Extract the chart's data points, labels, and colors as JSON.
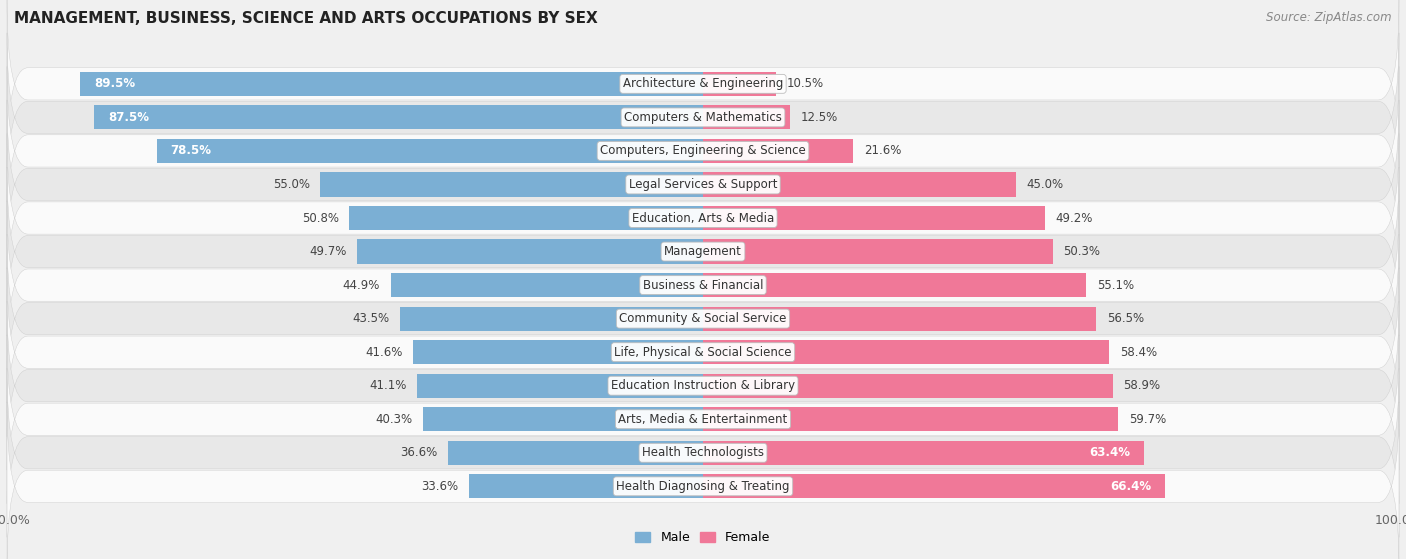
{
  "title": "MANAGEMENT, BUSINESS, SCIENCE AND ARTS OCCUPATIONS BY SEX",
  "source": "Source: ZipAtlas.com",
  "categories": [
    "Architecture & Engineering",
    "Computers & Mathematics",
    "Computers, Engineering & Science",
    "Legal Services & Support",
    "Education, Arts & Media",
    "Management",
    "Business & Financial",
    "Community & Social Service",
    "Life, Physical & Social Science",
    "Education Instruction & Library",
    "Arts, Media & Entertainment",
    "Health Technologists",
    "Health Diagnosing & Treating"
  ],
  "male_pct": [
    89.5,
    87.5,
    78.5,
    55.0,
    50.8,
    49.7,
    44.9,
    43.5,
    41.6,
    41.1,
    40.3,
    36.6,
    33.6
  ],
  "female_pct": [
    10.5,
    12.5,
    21.6,
    45.0,
    49.2,
    50.3,
    55.1,
    56.5,
    58.4,
    58.9,
    59.7,
    63.4,
    66.4
  ],
  "male_color": "#7bafd4",
  "female_color": "#f07898",
  "bg_color": "#f0f0f0",
  "row_bg_light": "#fafafa",
  "row_bg_dark": "#e8e8e8",
  "label_dark": "#444444",
  "label_white": "#ffffff",
  "title_color": "#222222",
  "source_color": "#888888"
}
